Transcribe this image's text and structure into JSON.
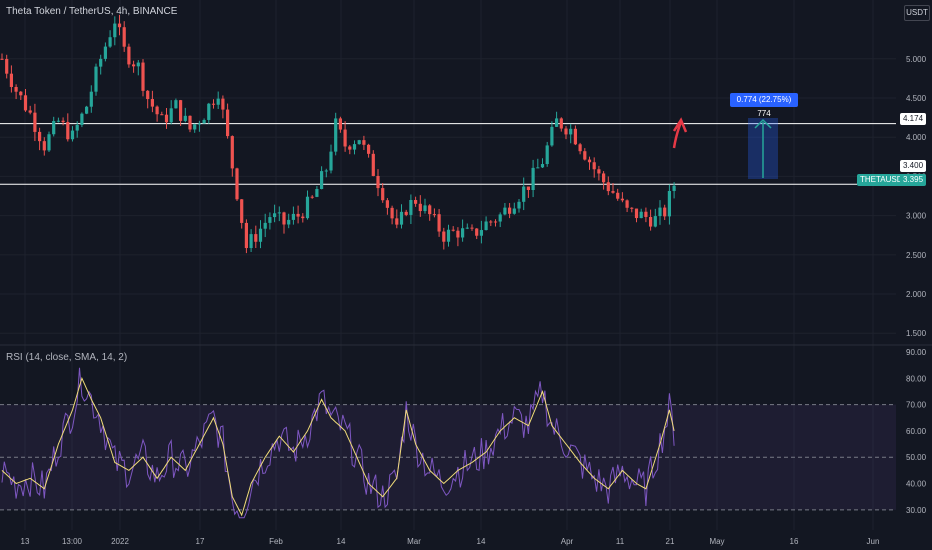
{
  "header": {
    "title": "Theta Token / TetherUS, 4h, BINANCE",
    "currency": "USDT"
  },
  "rsi": {
    "title": "RSI (14, close, SMA, 14, 2)"
  },
  "labels": {
    "symbol": "THETAUSDT",
    "price": "3.395",
    "line_high": "4.174",
    "line_low": "3.400",
    "measure": "0.774 (22.75%) 774"
  },
  "colors": {
    "background": "#131722",
    "up": "#26a69a",
    "down": "#ef5350",
    "rsi_line": "#7e57c2",
    "rsi_ma": "#f0dc78",
    "measure": "#2962ff",
    "arrow": "#e53946"
  },
  "chart_data": {
    "type": "candlestick",
    "y_ticks": [
      "5.000",
      "4.500",
      "4.000",
      "3.500",
      "3.000",
      "2.500",
      "2.000",
      "1.500"
    ],
    "ylim": [
      1.35,
      5.75
    ],
    "x_ticks": [
      "13",
      "13:00",
      "2022",
      "17",
      "Feb",
      "14",
      "Mar",
      "14",
      "Apr",
      "11",
      "21",
      "May",
      "16",
      "Jun"
    ],
    "horizontal_lines": [
      4.174,
      3.4
    ],
    "price_path": [
      [
        0,
        5.0
      ],
      [
        3,
        4.6
      ],
      [
        6,
        4.3
      ],
      [
        9,
        3.9
      ],
      [
        12,
        4.2
      ],
      [
        15,
        4.0
      ],
      [
        18,
        4.4
      ],
      [
        21,
        5.0
      ],
      [
        24,
        5.5
      ],
      [
        26,
        5.1
      ],
      [
        29,
        4.9
      ],
      [
        31,
        4.5
      ],
      [
        34,
        4.2
      ],
      [
        37,
        4.4
      ],
      [
        40,
        4.1
      ],
      [
        43,
        4.3
      ],
      [
        46,
        4.6
      ],
      [
        47,
        4.3
      ],
      [
        50,
        3.3
      ],
      [
        52,
        2.6
      ],
      [
        54,
        2.75
      ],
      [
        57,
        3.0
      ],
      [
        60,
        2.9
      ],
      [
        63,
        3.0
      ],
      [
        66,
        3.2
      ],
      [
        69,
        3.6
      ],
      [
        71,
        4.15
      ],
      [
        73,
        3.9
      ],
      [
        76,
        4.0
      ],
      [
        78,
        3.7
      ],
      [
        81,
        3.3
      ],
      [
        84,
        2.8
      ],
      [
        86,
        3.1
      ],
      [
        88,
        3.2
      ],
      [
        91,
        3.0
      ],
      [
        94,
        2.75
      ],
      [
        97,
        2.8
      ],
      [
        100,
        2.75
      ],
      [
        103,
        2.9
      ],
      [
        106,
        3.0
      ],
      [
        109,
        3.2
      ],
      [
        112,
        3.4
      ],
      [
        115,
        3.7
      ],
      [
        118,
        4.2
      ],
      [
        121,
        4.1
      ],
      [
        124,
        3.8
      ],
      [
        127,
        3.5
      ],
      [
        130,
        3.3
      ],
      [
        133,
        3.05
      ],
      [
        136,
        3.0
      ],
      [
        139,
        2.95
      ],
      [
        141,
        3.05
      ],
      [
        143,
        3.4
      ]
    ],
    "rsi": {
      "ylim": [
        25,
        90
      ],
      "y_ticks": [
        "90.00",
        "80.00",
        "70.00",
        "60.00",
        "50.00",
        "40.00",
        "30.00"
      ],
      "band": [
        30,
        70
      ],
      "midline": 50,
      "path": [
        [
          0,
          45
        ],
        [
          3,
          40
        ],
        [
          6,
          42
        ],
        [
          9,
          38
        ],
        [
          12,
          55
        ],
        [
          15,
          68
        ],
        [
          17,
          80
        ],
        [
          19,
          72
        ],
        [
          21,
          65
        ],
        [
          24,
          48
        ],
        [
          27,
          45
        ],
        [
          30,
          50
        ],
        [
          33,
          42
        ],
        [
          36,
          50
        ],
        [
          39,
          45
        ],
        [
          42,
          55
        ],
        [
          45,
          65
        ],
        [
          47,
          55
        ],
        [
          49,
          35
        ],
        [
          51,
          28
        ],
        [
          53,
          40
        ],
        [
          56,
          50
        ],
        [
          59,
          58
        ],
        [
          62,
          52
        ],
        [
          65,
          60
        ],
        [
          68,
          72
        ],
        [
          70,
          65
        ],
        [
          73,
          60
        ],
        [
          75,
          52
        ],
        [
          78,
          40
        ],
        [
          81,
          35
        ],
        [
          84,
          42
        ],
        [
          86,
          68
        ],
        [
          88,
          55
        ],
        [
          91,
          45
        ],
        [
          94,
          40
        ],
        [
          97,
          45
        ],
        [
          100,
          48
        ],
        [
          103,
          52
        ],
        [
          106,
          60
        ],
        [
          109,
          65
        ],
        [
          112,
          62
        ],
        [
          115,
          75
        ],
        [
          117,
          62
        ],
        [
          120,
          55
        ],
        [
          123,
          48
        ],
        [
          126,
          42
        ],
        [
          129,
          38
        ],
        [
          132,
          45
        ],
        [
          135,
          40
        ],
        [
          137,
          38
        ],
        [
          140,
          55
        ],
        [
          142,
          68
        ],
        [
          143,
          60
        ]
      ]
    }
  }
}
